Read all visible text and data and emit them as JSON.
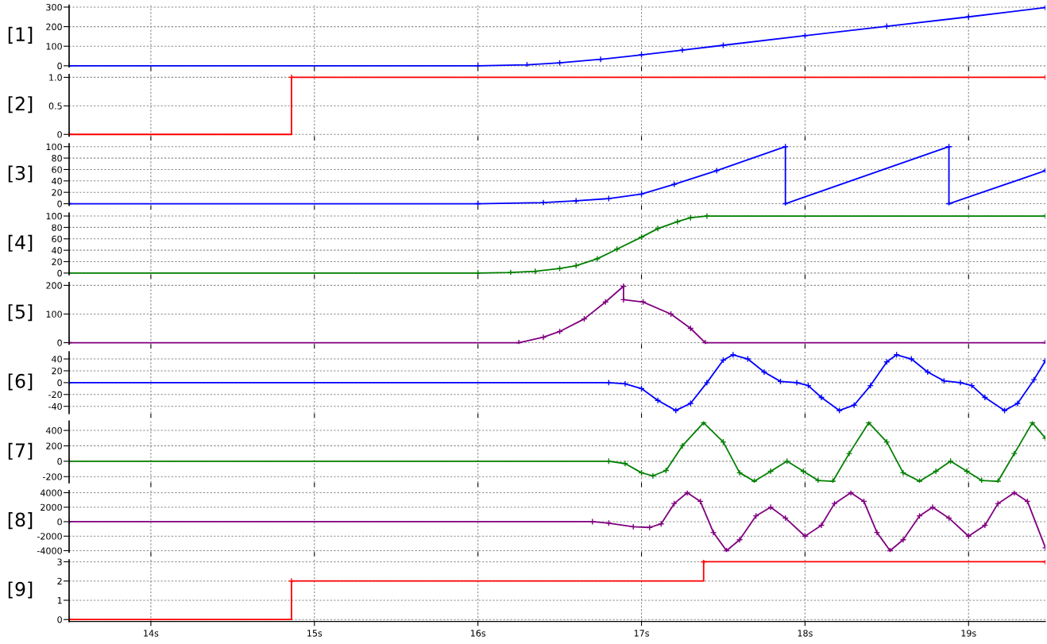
{
  "chart_data": [
    {
      "type": "line",
      "ylabel": "[1]",
      "xlim": [
        13.5,
        19.47
      ],
      "xticks": [
        {
          "value": 14,
          "label": null
        },
        {
          "value": 15,
          "label": null
        },
        {
          "value": 16,
          "label": null
        },
        {
          "value": 17,
          "label": null
        },
        {
          "value": 18,
          "label": null
        },
        {
          "value": 19,
          "label": null
        }
      ],
      "ylim": [
        -5,
        310
      ],
      "yticks": [
        0,
        100,
        200,
        300
      ],
      "grid": true,
      "marker": "cross",
      "tick_labels": "y",
      "x": [
        13.5,
        16.0,
        16.3,
        16.5,
        16.75,
        17.0,
        17.25,
        17.5,
        18.0,
        18.5,
        19.0,
        19.47
      ],
      "series": [
        {
          "color": "#0000ff",
          "values": [
            0,
            0,
            5,
            15,
            33,
            56,
            80,
            105,
            154,
            202,
            250,
            298
          ]
        }
      ]
    },
    {
      "type": "step",
      "ylabel": "[2]",
      "xlim": [
        13.5,
        19.47
      ],
      "xticks": [
        {
          "value": 14,
          "label": null
        },
        {
          "value": 15,
          "label": null
        },
        {
          "value": 16,
          "label": null
        },
        {
          "value": 17,
          "label": null
        },
        {
          "value": 18,
          "label": null
        },
        {
          "value": 19,
          "label": null
        }
      ],
      "ylim": [
        -0.03,
        1.05
      ],
      "yticks": [
        0,
        0.5,
        {
          "value": 1,
          "label": "1.0"
        }
      ],
      "grid": true,
      "marker": "cross",
      "tick_labels": "y",
      "x": [
        13.5,
        14.86,
        19.47
      ],
      "series": [
        {
          "color": "#ff0000",
          "values": [
            0,
            1,
            1
          ]
        }
      ]
    },
    {
      "type": "line",
      "ylabel": "[3]",
      "xlim": [
        13.5,
        19.47
      ],
      "xticks": [
        {
          "value": 14,
          "label": null
        },
        {
          "value": 15,
          "label": null
        },
        {
          "value": 16,
          "label": null
        },
        {
          "value": 17,
          "label": null
        },
        {
          "value": 18,
          "label": null
        },
        {
          "value": 19,
          "label": null
        }
      ],
      "ylim": [
        -3,
        105
      ],
      "yticks": [
        0,
        20,
        40,
        60,
        80,
        100
      ],
      "grid": true,
      "marker": "cross",
      "tick_labels": "y",
      "x": [
        13.5,
        16.0,
        16.4,
        16.6,
        16.8,
        17.0,
        17.2,
        17.46,
        17.88,
        17.88,
        18.88,
        18.88,
        19.47
      ],
      "series": [
        {
          "color": "#0000ff",
          "values": [
            0,
            0,
            2,
            5,
            9,
            17,
            34,
            58,
            100,
            0,
            100,
            0,
            58
          ]
        }
      ]
    },
    {
      "type": "line",
      "ylabel": "[4]",
      "xlim": [
        13.5,
        19.47
      ],
      "xticks": [
        {
          "value": 14,
          "label": null
        },
        {
          "value": 15,
          "label": null
        },
        {
          "value": 16,
          "label": null
        },
        {
          "value": 17,
          "label": null
        },
        {
          "value": 18,
          "label": null
        },
        {
          "value": 19,
          "label": null
        }
      ],
      "ylim": [
        -3,
        105
      ],
      "yticks": [
        0,
        20,
        40,
        60,
        80,
        100
      ],
      "grid": true,
      "marker": "cross",
      "tick_labels": "y",
      "x": [
        13.5,
        16.0,
        16.2,
        16.35,
        16.5,
        16.6,
        16.73,
        16.85,
        17.0,
        17.1,
        17.22,
        17.3,
        17.4,
        19.47
      ],
      "series": [
        {
          "color": "#008000",
          "values": [
            0,
            0,
            1,
            3,
            8,
            13,
            25,
            42,
            63,
            78,
            90,
            97,
            100,
            100
          ]
        }
      ]
    },
    {
      "type": "line",
      "ylabel": "[5]",
      "xlim": [
        13.5,
        19.47
      ],
      "xticks": [
        {
          "value": 14,
          "label": null
        },
        {
          "value": 15,
          "label": null
        },
        {
          "value": 16,
          "label": null
        },
        {
          "value": 17,
          "label": null
        },
        {
          "value": 18,
          "label": null
        },
        {
          "value": 19,
          "label": null
        }
      ],
      "ylim": [
        -5,
        210
      ],
      "yticks": [
        0,
        100,
        200
      ],
      "grid": true,
      "marker": "cross",
      "tick_labels": "y",
      "x": [
        13.5,
        16.25,
        16.4,
        16.5,
        16.65,
        16.78,
        16.89,
        16.89,
        17.01,
        17.18,
        17.3,
        17.39,
        19.47
      ],
      "series": [
        {
          "color": "#800080",
          "values": [
            0,
            0,
            19,
            39,
            83,
            142,
            197,
            150,
            142,
            100,
            50,
            0,
            0
          ]
        }
      ]
    },
    {
      "type": "line",
      "ylabel": "[6]",
      "xlim": [
        13.5,
        19.47
      ],
      "xticks": [
        {
          "value": 14,
          "label": null
        },
        {
          "value": 15,
          "label": null
        },
        {
          "value": 16,
          "label": null
        },
        {
          "value": 17,
          "label": null
        },
        {
          "value": 18,
          "label": null
        },
        {
          "value": 19,
          "label": null
        }
      ],
      "ylim": [
        -52,
        52
      ],
      "yticks": [
        -40,
        -20,
        0,
        20,
        40
      ],
      "grid": true,
      "marker": "cross",
      "tick_labels": "y",
      "x": [
        13.5,
        16.8,
        16.9,
        17.0,
        17.1,
        17.21,
        17.3,
        17.4,
        17.5,
        17.56,
        17.65,
        17.75,
        17.85,
        17.95,
        18.02,
        18.1,
        18.21,
        18.3,
        18.4,
        18.5,
        18.56,
        18.65,
        18.75,
        18.85,
        18.95,
        19.02,
        19.1,
        19.22,
        19.3,
        19.4,
        19.47
      ],
      "series": [
        {
          "color": "#0000ff",
          "values": [
            0,
            0,
            -2,
            -10,
            -30,
            -47,
            -35,
            0,
            38,
            47,
            40,
            18,
            2,
            0,
            -5,
            -25,
            -47,
            -38,
            -5,
            35,
            47,
            40,
            18,
            3,
            0,
            -5,
            -25,
            -47,
            -35,
            5,
            37
          ]
        }
      ]
    },
    {
      "type": "line",
      "ylabel": "[7]",
      "xlim": [
        13.5,
        19.47
      ],
      "xticks": [
        {
          "value": 14,
          "label": null
        },
        {
          "value": 15,
          "label": null
        },
        {
          "value": 16,
          "label": null
        },
        {
          "value": 17,
          "label": null
        },
        {
          "value": 18,
          "label": null
        },
        {
          "value": 19,
          "label": null
        }
      ],
      "ylim": [
        -280,
        520
      ],
      "yticks": [
        -200,
        0,
        200,
        400
      ],
      "grid": true,
      "marker": "cross",
      "tick_labels": "y",
      "x": [
        13.5,
        16.8,
        16.9,
        17.0,
        17.07,
        17.15,
        17.25,
        17.38,
        17.5,
        17.6,
        17.69,
        17.79,
        17.89,
        17.99,
        18.08,
        18.17,
        18.27,
        18.39,
        18.5,
        18.6,
        18.7,
        18.8,
        18.89,
        18.99,
        19.08,
        19.18,
        19.28,
        19.39,
        19.47
      ],
      "series": [
        {
          "color": "#008000",
          "values": [
            0,
            0,
            -30,
            -150,
            -190,
            -120,
            200,
            500,
            250,
            -150,
            -260,
            -130,
            0,
            -130,
            -250,
            -260,
            100,
            500,
            250,
            -150,
            -260,
            -130,
            0,
            -130,
            -250,
            -260,
            100,
            500,
            300
          ]
        }
      ]
    },
    {
      "type": "line",
      "ylabel": "[8]",
      "xlim": [
        13.5,
        19.47
      ],
      "xticks": [
        {
          "value": 14,
          "label": null
        },
        {
          "value": 15,
          "label": null
        },
        {
          "value": 16,
          "label": null
        },
        {
          "value": 17,
          "label": null
        },
        {
          "value": 18,
          "label": null
        },
        {
          "value": 19,
          "label": null
        }
      ],
      "ylim": [
        -4200,
        4300
      ],
      "yticks": [
        -4000,
        -2000,
        0,
        2000,
        4000
      ],
      "grid": true,
      "marker": "cross",
      "tick_labels": "y",
      "x": [
        13.5,
        16.7,
        16.8,
        16.95,
        17.05,
        17.12,
        17.2,
        17.28,
        17.36,
        17.44,
        17.52,
        17.6,
        17.7,
        17.79,
        17.88,
        18.0,
        18.1,
        18.18,
        18.28,
        18.36,
        18.44,
        18.52,
        18.6,
        18.7,
        18.78,
        18.88,
        19.0,
        19.1,
        19.18,
        19.28,
        19.36,
        19.47
      ],
      "series": [
        {
          "color": "#800080",
          "values": [
            0,
            0,
            -200,
            -700,
            -800,
            -300,
            2500,
            4000,
            2800,
            -1500,
            -4000,
            -2500,
            800,
            2000,
            500,
            -2000,
            -500,
            2500,
            4000,
            2800,
            -1500,
            -4000,
            -2500,
            800,
            2000,
            500,
            -2000,
            -500,
            2500,
            4000,
            2800,
            -3600
          ]
        }
      ]
    },
    {
      "type": "step",
      "ylabel": "[9]",
      "xlim": [
        13.5,
        19.47
      ],
      "xticks": [
        {
          "value": 14,
          "label": "14s"
        },
        {
          "value": 15,
          "label": "15s"
        },
        {
          "value": 16,
          "label": "16s"
        },
        {
          "value": 17,
          "label": "17s"
        },
        {
          "value": 18,
          "label": "18s"
        },
        {
          "value": 19,
          "label": "19s"
        }
      ],
      "ylim": [
        -0.1,
        3.1
      ],
      "yticks": [
        0,
        1,
        2,
        3
      ],
      "grid": true,
      "marker": "cross",
      "x": [
        13.5,
        14.86,
        17.38,
        19.47
      ],
      "series": [
        {
          "color": "#ff0000",
          "values": [
            0,
            2,
            3,
            3
          ]
        }
      ]
    }
  ]
}
